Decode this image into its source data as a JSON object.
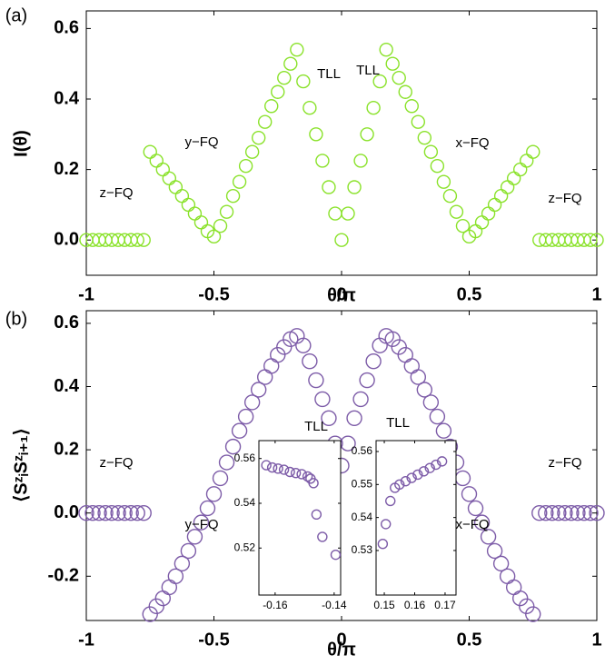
{
  "chart_data": [
    {
      "type": "scatter",
      "panel_label": "(a)",
      "xlabel": "θ/π",
      "ylabel": "I(θ)",
      "color": "#8ae22a",
      "xlim": [
        -1,
        1
      ],
      "ylim": [
        -0.1,
        0.65
      ],
      "xticks": [
        -1,
        -0.5,
        0,
        0.5,
        1
      ],
      "yticks": [
        {
          "value": 0,
          "label": "0.0"
        },
        0.2,
        0.4,
        0.6
      ],
      "annotations": [
        "z−FQ",
        "y−FQ",
        "TLL",
        "TLL",
        "x−FQ",
        "z−FQ"
      ],
      "x": [
        -1,
        -0.975,
        -0.95,
        -0.925,
        -0.9,
        -0.875,
        -0.85,
        -0.825,
        -0.8,
        -0.775,
        -0.75,
        -0.725,
        -0.7,
        -0.675,
        -0.65,
        -0.625,
        -0.6,
        -0.575,
        -0.55,
        -0.525,
        -0.5,
        -0.475,
        -0.45,
        -0.425,
        -0.4,
        -0.375,
        -0.35,
        -0.325,
        -0.3,
        -0.275,
        -0.25,
        -0.225,
        -0.2,
        -0.175,
        -0.15,
        -0.125,
        -0.1,
        -0.075,
        -0.05,
        -0.025,
        0,
        0.025,
        0.05,
        0.075,
        0.1,
        0.125,
        0.15,
        0.175,
        0.2,
        0.225,
        0.25,
        0.275,
        0.3,
        0.325,
        0.35,
        0.375,
        0.4,
        0.425,
        0.45,
        0.475,
        0.5,
        0.525,
        0.55,
        0.575,
        0.6,
        0.625,
        0.65,
        0.675,
        0.7,
        0.725,
        0.75,
        0.775,
        0.8,
        0.825,
        0.85,
        0.875,
        0.9,
        0.925,
        0.95,
        0.975,
        1
      ],
      "values": [
        0,
        0,
        0,
        0,
        0,
        0,
        0,
        0,
        0,
        0,
        0.25,
        0.225,
        0.2,
        0.175,
        0.15,
        0.125,
        0.1,
        0.075,
        0.05,
        0.025,
        0.01,
        0.04,
        0.08,
        0.125,
        0.165,
        0.21,
        0.25,
        0.29,
        0.335,
        0.38,
        0.42,
        0.46,
        0.5,
        0.54,
        0.45,
        0.375,
        0.3,
        0.225,
        0.15,
        0.075,
        0,
        0.075,
        0.15,
        0.225,
        0.3,
        0.375,
        0.45,
        0.54,
        0.5,
        0.46,
        0.42,
        0.38,
        0.335,
        0.29,
        0.25,
        0.21,
        0.165,
        0.125,
        0.08,
        0.04,
        0.01,
        0.025,
        0.05,
        0.075,
        0.1,
        0.125,
        0.15,
        0.175,
        0.2,
        0.225,
        0.25,
        0,
        0,
        0,
        0,
        0,
        0,
        0,
        0,
        0,
        0
      ]
    },
    {
      "type": "scatter",
      "panel_label": "(b)",
      "xlabel": "θ/π",
      "ylabel": "⟨SᶻᵢSᶻᵢ₊₁⟩",
      "color": "#7d5ca8",
      "xlim": [
        -1,
        1
      ],
      "ylim": [
        -0.34,
        0.64
      ],
      "xticks": [
        -1,
        -0.5,
        0,
        0.5,
        1
      ],
      "yticks": [
        -0.2,
        {
          "value": 0,
          "label": "0.0"
        },
        0.2,
        0.4,
        0.6
      ],
      "annotations": [
        "z−FQ",
        "y−FQ",
        "TLL",
        "TLL",
        "x−FQ",
        "z−FQ"
      ],
      "x": [
        -1,
        -0.975,
        -0.95,
        -0.925,
        -0.9,
        -0.875,
        -0.85,
        -0.825,
        -0.8,
        -0.775,
        -0.75,
        -0.725,
        -0.7,
        -0.675,
        -0.65,
        -0.625,
        -0.6,
        -0.575,
        -0.55,
        -0.525,
        -0.5,
        -0.475,
        -0.45,
        -0.425,
        -0.4,
        -0.375,
        -0.35,
        -0.325,
        -0.3,
        -0.275,
        -0.25,
        -0.225,
        -0.2,
        -0.175,
        -0.15,
        -0.125,
        -0.1,
        -0.075,
        -0.05,
        -0.025,
        0,
        0.025,
        0.05,
        0.075,
        0.1,
        0.125,
        0.15,
        0.175,
        0.2,
        0.225,
        0.25,
        0.275,
        0.3,
        0.325,
        0.35,
        0.375,
        0.4,
        0.425,
        0.45,
        0.475,
        0.5,
        0.525,
        0.55,
        0.575,
        0.6,
        0.625,
        0.65,
        0.675,
        0.7,
        0.725,
        0.75,
        0.775,
        0.8,
        0.825,
        0.85,
        0.875,
        0.9,
        0.925,
        0.95,
        0.975,
        1
      ],
      "values": [
        0,
        0,
        0,
        0,
        0,
        0,
        0,
        0,
        0,
        0,
        -0.32,
        -0.295,
        -0.27,
        -0.235,
        -0.2,
        -0.16,
        -0.12,
        -0.075,
        -0.03,
        0.015,
        0.06,
        0.11,
        0.16,
        0.21,
        0.26,
        0.305,
        0.35,
        0.39,
        0.43,
        0.465,
        0.5,
        0.525,
        0.55,
        0.56,
        0.53,
        0.48,
        0.42,
        0.36,
        0.3,
        0.22,
        0.15,
        0.22,
        0.3,
        0.36,
        0.42,
        0.48,
        0.53,
        0.56,
        0.55,
        0.525,
        0.5,
        0.465,
        0.43,
        0.39,
        0.35,
        0.305,
        0.26,
        0.21,
        0.16,
        0.11,
        0.06,
        0.015,
        -0.03,
        -0.075,
        -0.12,
        -0.16,
        -0.2,
        -0.235,
        -0.27,
        -0.295,
        -0.32,
        0,
        0,
        0,
        0,
        0,
        0,
        0,
        0,
        0,
        0
      ]
    },
    {
      "type": "scatter",
      "color": "#7d5ca8",
      "xlim": [
        -0.1655,
        -0.1378
      ],
      "ylim": [
        0.499,
        0.568
      ],
      "xticks": [
        -0.16,
        -0.14
      ],
      "yticks": [
        0.52,
        0.54,
        0.56
      ],
      "x": [
        -0.163,
        -0.161,
        -0.159,
        -0.157,
        -0.155,
        -0.153,
        -0.151,
        -0.149,
        -0.148,
        -0.147,
        -0.146,
        -0.144,
        -0.1395
      ],
      "values": [
        0.557,
        0.556,
        0.5555,
        0.555,
        0.554,
        0.5535,
        0.553,
        0.552,
        0.551,
        0.549,
        0.535,
        0.525,
        0.517
      ]
    },
    {
      "type": "scatter",
      "color": "#7d5ca8",
      "xlim": [
        0.1473,
        0.1736
      ],
      "ylim": [
        0.5165,
        0.5633
      ],
      "xticks": [
        0.15,
        0.16,
        0.17
      ],
      "yticks": [
        0.53,
        0.54,
        0.55,
        0.56
      ],
      "x": [
        0.1495,
        0.1505,
        0.152,
        0.1535,
        0.155,
        0.157,
        0.159,
        0.161,
        0.163,
        0.165,
        0.167,
        0.169
      ],
      "values": [
        0.532,
        0.538,
        0.545,
        0.549,
        0.55,
        0.551,
        0.552,
        0.553,
        0.554,
        0.555,
        0.556,
        0.557
      ]
    }
  ]
}
